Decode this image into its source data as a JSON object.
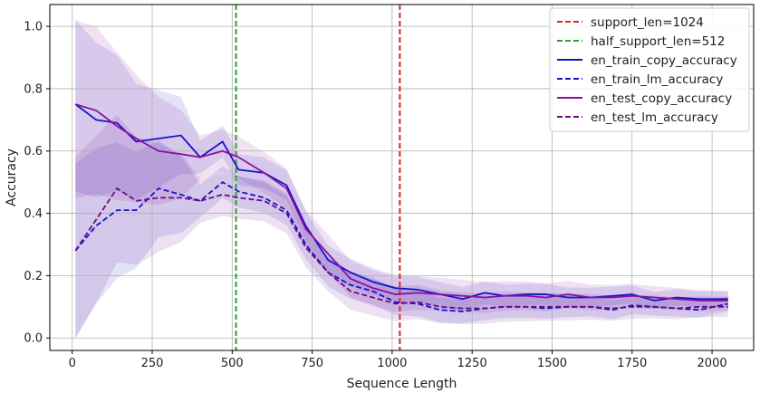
{
  "chart_data": {
    "type": "line",
    "xlabel": "Sequence Length",
    "ylabel": "Accuracy",
    "xlim": [
      -70,
      2130
    ],
    "ylim": [
      -0.04,
      1.07
    ],
    "xticks": [
      0,
      250,
      500,
      750,
      1000,
      1250,
      1500,
      1750,
      2000
    ],
    "yticks": [
      0.0,
      0.2,
      0.4,
      0.6,
      0.8,
      1.0
    ],
    "grid": true,
    "legend_position": "top-right",
    "vlines": [
      {
        "name": "support_len=1024",
        "x": 1024,
        "color": "#d62728",
        "style": "dashed"
      },
      {
        "name": "half_support_len=512",
        "x": 512,
        "color": "#2ca02c",
        "style": "dashed"
      }
    ],
    "x": [
      10,
      75,
      140,
      200,
      270,
      340,
      400,
      470,
      520,
      600,
      670,
      730,
      800,
      870,
      940,
      1010,
      1080,
      1150,
      1220,
      1290,
      1350,
      1420,
      1480,
      1550,
      1620,
      1690,
      1750,
      1820,
      1890,
      1960,
      2050
    ],
    "series": [
      {
        "name": "en_train_copy_accuracy",
        "color": "#1515c8",
        "style": "solid",
        "values": [
          0.75,
          0.7,
          0.69,
          0.63,
          0.64,
          0.65,
          0.58,
          0.63,
          0.54,
          0.53,
          0.49,
          0.36,
          0.25,
          0.21,
          0.18,
          0.16,
          0.155,
          0.14,
          0.125,
          0.145,
          0.135,
          0.14,
          0.14,
          0.13,
          0.13,
          0.135,
          0.14,
          0.12,
          0.13,
          0.125,
          0.125
        ],
        "band": 0.06
      },
      {
        "name": "en_train_lm_accuracy",
        "color": "#1515c8",
        "style": "dashed",
        "values": [
          0.28,
          0.36,
          0.41,
          0.41,
          0.48,
          0.46,
          0.44,
          0.5,
          0.47,
          0.45,
          0.41,
          0.3,
          0.21,
          0.17,
          0.15,
          0.115,
          0.11,
          0.09,
          0.085,
          0.095,
          0.1,
          0.1,
          0.095,
          0.1,
          0.1,
          0.09,
          0.105,
          0.1,
          0.095,
          0.09,
          0.11
        ],
        "band": 0.06
      },
      {
        "name": "en_test_copy_accuracy",
        "color": "#8a10a0",
        "style": "solid",
        "values": [
          0.75,
          0.73,
          0.68,
          0.64,
          0.6,
          0.59,
          0.58,
          0.6,
          0.58,
          0.53,
          0.48,
          0.35,
          0.27,
          0.19,
          0.16,
          0.14,
          0.145,
          0.14,
          0.135,
          0.13,
          0.135,
          0.135,
          0.13,
          0.14,
          0.13,
          0.13,
          0.135,
          0.13,
          0.125,
          0.12,
          0.12
        ],
        "band": 0.08
      },
      {
        "name": "en_test_lm_accuracy",
        "color": "#6a0a8a",
        "style": "dashed",
        "values": [
          0.28,
          0.38,
          0.48,
          0.44,
          0.45,
          0.45,
          0.44,
          0.46,
          0.45,
          0.44,
          0.4,
          0.29,
          0.21,
          0.15,
          0.13,
          0.11,
          0.115,
          0.1,
          0.095,
          0.095,
          0.1,
          0.1,
          0.1,
          0.1,
          0.1,
          0.095,
          0.1,
          0.1,
          0.095,
          0.1,
          0.1
        ],
        "band": 0.08
      }
    ]
  }
}
